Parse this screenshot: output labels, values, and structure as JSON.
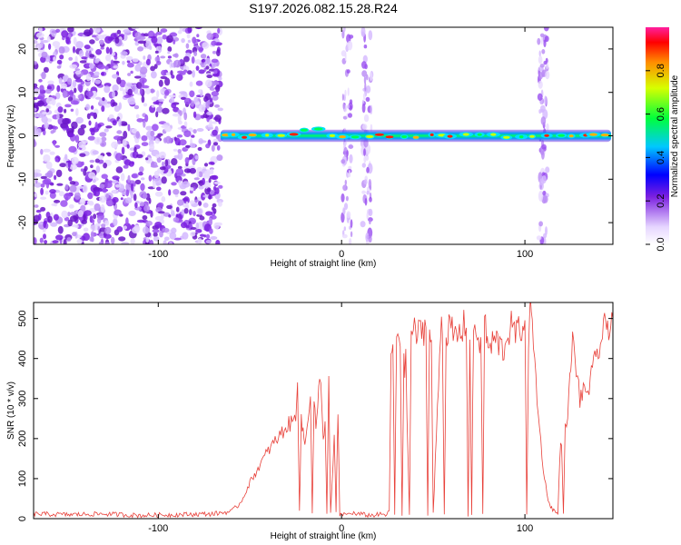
{
  "title": "S197.2026.082.15.28.R24",
  "chart_data": [
    {
      "type": "heatmap",
      "xlabel": "Height of straight line (km)",
      "ylabel": "Frequency (Hz)",
      "xlim": [
        -168,
        148
      ],
      "ylim": [
        -25,
        25
      ],
      "xticks": [
        -100,
        0,
        100
      ],
      "xtick_labels": [
        "-100",
        "0",
        "100"
      ],
      "yticks": [
        -20,
        -10,
        0,
        10,
        20
      ],
      "ytick_labels": [
        "-20",
        "-10",
        "0",
        "10",
        "20"
      ],
      "noise_region_x": [
        -168,
        -66
      ],
      "echo_band_freq": 0,
      "noise_stripes_x": [
        3,
        14,
        110
      ],
      "colorbar": {
        "label": "Normalized spectral amplitude",
        "range": [
          0,
          1
        ],
        "ticks": [
          0,
          0.2,
          0.4,
          0.6,
          0.8
        ],
        "tick_labels": [
          "0.0",
          "0.2",
          "0.4",
          "0.6",
          "0.8"
        ]
      },
      "grid": false
    },
    {
      "type": "line",
      "xlabel": "Height of straight line (km)",
      "ylabel": "SNR (10 * v/v)",
      "xlim": [
        -168,
        148
      ],
      "ylim": [
        0,
        540
      ],
      "xticks": [
        -100,
        0,
        100
      ],
      "xtick_labels": [
        "-100",
        "0",
        "100"
      ],
      "yticks": [
        0,
        100,
        200,
        300,
        400,
        500
      ],
      "ytick_labels": [
        "0",
        "100",
        "200",
        "300",
        "400",
        "500"
      ],
      "series": [
        {
          "name": "SNR",
          "color": "#e8413a",
          "x": [
            -168,
            -150,
            -130,
            -110,
            -90,
            -70,
            -60,
            -55,
            -50,
            -45,
            -40,
            -35,
            -30,
            -25,
            -24,
            -23,
            -22,
            -21,
            -20,
            -17,
            -16,
            -15,
            -14,
            -13,
            -12,
            -10,
            -9,
            -8,
            -7,
            -6,
            -4,
            -3,
            -2,
            -1,
            0,
            2,
            4,
            6,
            8,
            10,
            12,
            16,
            20,
            24,
            26,
            27,
            28,
            29,
            30,
            32,
            33,
            34,
            35,
            37,
            38,
            42,
            46,
            47,
            48,
            49,
            50,
            54,
            55,
            56,
            57,
            58,
            62,
            66,
            68,
            69,
            70,
            71,
            72,
            74,
            76,
            77,
            78,
            79,
            80,
            84,
            88,
            92,
            96,
            100,
            101,
            102,
            103,
            104,
            106,
            108,
            110,
            112,
            114,
            118,
            119,
            120,
            121,
            122,
            124,
            125,
            126,
            128,
            130,
            135,
            140,
            144,
            148
          ],
          "y": [
            12,
            10,
            12,
            8,
            10,
            12,
            18,
            40,
            90,
            130,
            170,
            200,
            230,
            250,
            370,
            20,
            240,
            220,
            180,
            320,
            10,
            300,
            220,
            260,
            380,
            200,
            250,
            10,
            330,
            10,
            200,
            20,
            250,
            10,
            12,
            10,
            12,
            15,
            10,
            12,
            10,
            8,
            10,
            10,
            15,
            410,
            430,
            10,
            470,
            440,
            10,
            380,
            390,
            10,
            470,
            460,
            480,
            10,
            470,
            440,
            10,
            470,
            500,
            10,
            440,
            480,
            450,
            470,
            500,
            10,
            430,
            10,
            490,
            460,
            440,
            10,
            500,
            460,
            420,
            450,
            420,
            480,
            460,
            500,
            10,
            450,
            520,
            480,
            350,
            220,
            130,
            60,
            30,
            10,
            150,
            200,
            10,
            220,
            300,
            380,
            440,
            380,
            300,
            330,
            420,
            480,
            500
          ]
        }
      ],
      "grid": false
    }
  ]
}
